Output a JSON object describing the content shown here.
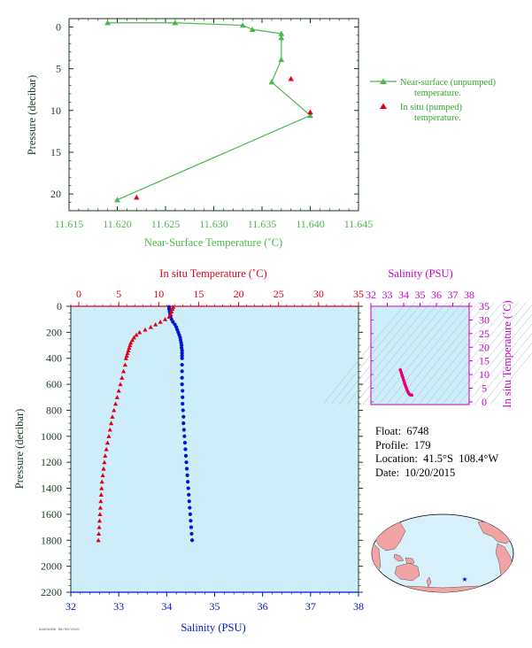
{
  "colors": {
    "green": "#4cb84c",
    "red": "#e0001a",
    "blue": "#0015d0",
    "magenta": "#c800c8",
    "axis_dark": "#1e3a22",
    "plot_bg": "#cdeef8",
    "salinity_trace": "#e8007a",
    "map_land": "#f2a4a4",
    "map_ocean": "#d8f0fa"
  },
  "info": {
    "float": "Float:  6748",
    "profile": "Profile:  179",
    "location": "Location:  41.5°S  108.4°W",
    "date": "Date:  10/20/2015"
  },
  "legend": {
    "unpumped": "Near-surface (unpumped)",
    "unpumped2": "temperature.",
    "pumped": "In situ (pumped)",
    "pumped2": "temperature."
  },
  "footer": "A4A5A1B8 08/06/2015",
  "chart_data": [
    {
      "type": "line",
      "name": "near-surface",
      "xlabel": "Near-Surface Temperature (˚C)",
      "ylabel": "Pressure (decibar)",
      "xlim": [
        11.615,
        11.645
      ],
      "ylim": [
        22,
        -1
      ],
      "xticks": [
        "11.615",
        "11.620",
        "11.625",
        "11.630",
        "11.635",
        "11.640",
        "11.645"
      ],
      "yticks": [
        "0",
        "5",
        "10",
        "15",
        "20"
      ],
      "series": [
        {
          "name": "Near-surface (unpumped) temperature.",
          "points": [
            [
              11.619,
              -0.5
            ],
            [
              11.626,
              -0.5
            ],
            [
              11.633,
              -0.2
            ],
            [
              11.634,
              0.3
            ],
            [
              11.637,
              0.8
            ],
            [
              11.637,
              1.3
            ],
            [
              11.637,
              3.9
            ],
            [
              11.636,
              6.6
            ],
            [
              11.64,
              10.6
            ],
            [
              11.62,
              20.7
            ]
          ]
        },
        {
          "name": "In situ (pumped) temperature.",
          "points": [
            [
              11.638,
              6.2
            ],
            [
              11.64,
              10.2
            ],
            [
              11.622,
              20.4
            ]
          ]
        }
      ]
    },
    {
      "type": "scatter",
      "name": "profile",
      "ylabel": "Pressure (decibar)",
      "x_top_label": "In situ Temperature (˚C)",
      "x_bottom_label": "Salinity (PSU)",
      "temp_lim": [
        -1,
        35
      ],
      "sal_lim": [
        32,
        38
      ],
      "ylim": [
        2200,
        0
      ],
      "temp_ticks": [
        "0",
        "5",
        "10",
        "15",
        "20",
        "25",
        "30",
        "35"
      ],
      "sal_ticks": [
        "32",
        "33",
        "34",
        "35",
        "36",
        "37",
        "38"
      ],
      "yticks": [
        "0",
        "200",
        "400",
        "600",
        "800",
        "1000",
        "1200",
        "1400",
        "1600",
        "1800",
        "2000",
        "2200"
      ],
      "temperature": [
        [
          11.8,
          5
        ],
        [
          11.7,
          20
        ],
        [
          11.6,
          40
        ],
        [
          11.5,
          60
        ],
        [
          11.3,
          80
        ],
        [
          10.8,
          100
        ],
        [
          10.2,
          120
        ],
        [
          9.6,
          140
        ],
        [
          9.0,
          160
        ],
        [
          8.3,
          180
        ],
        [
          7.6,
          200
        ],
        [
          7.2,
          220
        ],
        [
          6.9,
          240
        ],
        [
          6.7,
          260
        ],
        [
          6.5,
          280
        ],
        [
          6.4,
          300
        ],
        [
          6.3,
          320
        ],
        [
          6.2,
          340
        ],
        [
          6.1,
          360
        ],
        [
          6.0,
          380
        ],
        [
          5.9,
          400
        ],
        [
          5.8,
          450
        ],
        [
          5.6,
          500
        ],
        [
          5.4,
          550
        ],
        [
          5.2,
          600
        ],
        [
          5.0,
          650
        ],
        [
          4.8,
          700
        ],
        [
          4.6,
          750
        ],
        [
          4.4,
          800
        ],
        [
          4.2,
          850
        ],
        [
          4.05,
          900
        ],
        [
          3.9,
          950
        ],
        [
          3.75,
          1000
        ],
        [
          3.6,
          1050
        ],
        [
          3.45,
          1100
        ],
        [
          3.3,
          1150
        ],
        [
          3.2,
          1200
        ],
        [
          3.1,
          1250
        ],
        [
          3.0,
          1300
        ],
        [
          2.9,
          1350
        ],
        [
          2.85,
          1400
        ],
        [
          2.8,
          1450
        ],
        [
          2.75,
          1500
        ],
        [
          2.7,
          1550
        ],
        [
          2.65,
          1600
        ],
        [
          2.6,
          1650
        ],
        [
          2.55,
          1700
        ],
        [
          2.5,
          1750
        ],
        [
          2.45,
          1800
        ]
      ],
      "salinity": [
        [
          34.05,
          5
        ],
        [
          34.05,
          20
        ],
        [
          34.06,
          40
        ],
        [
          34.07,
          60
        ],
        [
          34.08,
          80
        ],
        [
          34.1,
          100
        ],
        [
          34.13,
          120
        ],
        [
          34.17,
          140
        ],
        [
          34.2,
          160
        ],
        [
          34.22,
          180
        ],
        [
          34.24,
          200
        ],
        [
          34.26,
          220
        ],
        [
          34.28,
          240
        ],
        [
          34.29,
          260
        ],
        [
          34.3,
          280
        ],
        [
          34.31,
          300
        ],
        [
          34.31,
          320
        ],
        [
          34.32,
          340
        ],
        [
          34.32,
          360
        ],
        [
          34.32,
          380
        ],
        [
          34.32,
          400
        ],
        [
          34.32,
          450
        ],
        [
          34.32,
          500
        ],
        [
          34.32,
          550
        ],
        [
          34.32,
          600
        ],
        [
          34.33,
          650
        ],
        [
          34.33,
          700
        ],
        [
          34.33,
          750
        ],
        [
          34.34,
          800
        ],
        [
          34.35,
          850
        ],
        [
          34.35,
          900
        ],
        [
          34.36,
          950
        ],
        [
          34.37,
          1000
        ],
        [
          34.38,
          1050
        ],
        [
          34.39,
          1100
        ],
        [
          34.4,
          1150
        ],
        [
          34.41,
          1200
        ],
        [
          34.42,
          1250
        ],
        [
          34.43,
          1300
        ],
        [
          34.44,
          1350
        ],
        [
          34.45,
          1400
        ],
        [
          34.46,
          1450
        ],
        [
          34.47,
          1500
        ],
        [
          34.48,
          1550
        ],
        [
          34.49,
          1600
        ],
        [
          34.5,
          1650
        ],
        [
          34.51,
          1700
        ],
        [
          34.52,
          1750
        ],
        [
          34.53,
          1800
        ]
      ]
    },
    {
      "type": "scatter",
      "name": "ts-diagram",
      "title": "Salinity (PSU)",
      "ylabel": "In situ Temperature (˚C)",
      "xlim": [
        32,
        38
      ],
      "ylim": [
        -1,
        35
      ],
      "xticks": [
        "32",
        "33",
        "34",
        "35",
        "36",
        "37",
        "38"
      ],
      "yticks": [
        "0",
        "5",
        "10",
        "15",
        "20",
        "25",
        "30",
        "35"
      ],
      "points": [
        [
          33.8,
          11.7
        ],
        [
          33.85,
          10.8
        ],
        [
          33.9,
          9.8
        ],
        [
          33.95,
          8.9
        ],
        [
          34.0,
          7.9
        ],
        [
          34.05,
          7.0
        ],
        [
          34.1,
          6.1
        ],
        [
          34.15,
          5.3
        ],
        [
          34.2,
          4.5
        ],
        [
          34.25,
          3.8
        ],
        [
          34.3,
          3.2
        ],
        [
          34.35,
          2.8
        ],
        [
          34.4,
          2.6
        ],
        [
          34.45,
          2.5
        ],
        [
          34.5,
          2.45
        ]
      ]
    }
  ]
}
